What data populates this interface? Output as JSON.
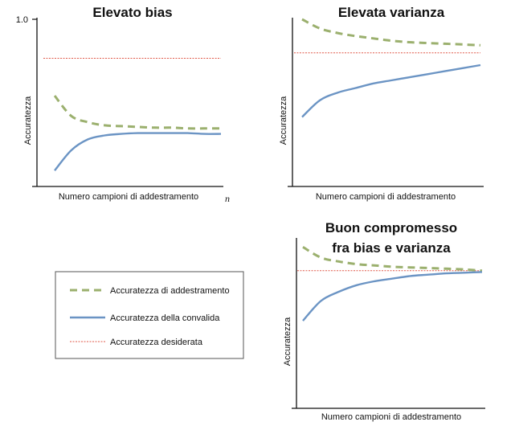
{
  "colors": {
    "training": "#9bb06e",
    "validation": "#6b94c4",
    "desired": "#e05a4a",
    "axis": "#111111"
  },
  "legend": {
    "training_label": "Accuratezza di addestramento",
    "validation_label": "Accuratezza della convalida",
    "desired_label": "Accuratezza desiderata"
  },
  "chart_data": [
    {
      "type": "line",
      "title": "Elevato bias",
      "xlabel": "Numero campioni di addestramento",
      "ylabel": "Accuratezza",
      "ytick_label": "1.0",
      "x_end_label": "n",
      "ylim": [
        0,
        1
      ],
      "x": [
        0,
        0.1,
        0.2,
        0.3,
        0.4,
        0.5,
        0.6,
        0.7,
        0.8,
        0.9,
        1.0
      ],
      "series": [
        {
          "key": "training",
          "values": [
            0.51,
            0.38,
            0.34,
            0.32,
            0.315,
            0.31,
            0.305,
            0.305,
            0.3,
            0.3,
            0.3
          ]
        },
        {
          "key": "validation",
          "values": [
            0.03,
            0.16,
            0.23,
            0.255,
            0.265,
            0.27,
            0.27,
            0.27,
            0.27,
            0.265,
            0.265
          ]
        },
        {
          "key": "desired",
          "values": [
            0.75,
            0.75,
            0.75,
            0.75,
            0.75,
            0.75,
            0.75,
            0.75,
            0.75,
            0.75,
            0.75
          ]
        }
      ]
    },
    {
      "type": "line",
      "title": "Elevata varianza",
      "xlabel": "Numero campioni di addestramento",
      "ylabel": "Accuratezza",
      "ylim": [
        0,
        1
      ],
      "x": [
        0,
        0.1,
        0.2,
        0.3,
        0.4,
        0.5,
        0.6,
        0.7,
        0.8,
        0.9,
        1.0
      ],
      "series": [
        {
          "key": "training",
          "values": [
            1.0,
            0.94,
            0.91,
            0.89,
            0.875,
            0.86,
            0.85,
            0.845,
            0.84,
            0.835,
            0.83
          ]
        },
        {
          "key": "validation",
          "values": [
            0.36,
            0.47,
            0.52,
            0.55,
            0.58,
            0.6,
            0.62,
            0.64,
            0.66,
            0.68,
            0.7
          ]
        },
        {
          "key": "desired",
          "values": [
            0.78,
            0.78,
            0.78,
            0.78,
            0.78,
            0.78,
            0.78,
            0.78,
            0.78,
            0.78,
            0.78
          ]
        }
      ]
    },
    {
      "type": "line",
      "title": "Buon compromesso",
      "title_line2": "fra bias e varianza",
      "xlabel": "Numero campioni di addestramento",
      "ylabel": "Accuratezza",
      "ylim": [
        0,
        1
      ],
      "x": [
        0,
        0.1,
        0.2,
        0.3,
        0.4,
        0.5,
        0.6,
        0.7,
        0.8,
        0.9,
        1.0
      ],
      "series": [
        {
          "key": "training",
          "values": [
            0.98,
            0.9,
            0.87,
            0.85,
            0.84,
            0.83,
            0.825,
            0.82,
            0.815,
            0.81,
            0.8
          ]
        },
        {
          "key": "validation",
          "values": [
            0.42,
            0.57,
            0.64,
            0.69,
            0.72,
            0.74,
            0.76,
            0.77,
            0.78,
            0.785,
            0.79
          ]
        },
        {
          "key": "desired",
          "values": [
            0.8,
            0.8,
            0.8,
            0.8,
            0.8,
            0.8,
            0.8,
            0.8,
            0.8,
            0.8,
            0.8
          ]
        }
      ]
    }
  ]
}
